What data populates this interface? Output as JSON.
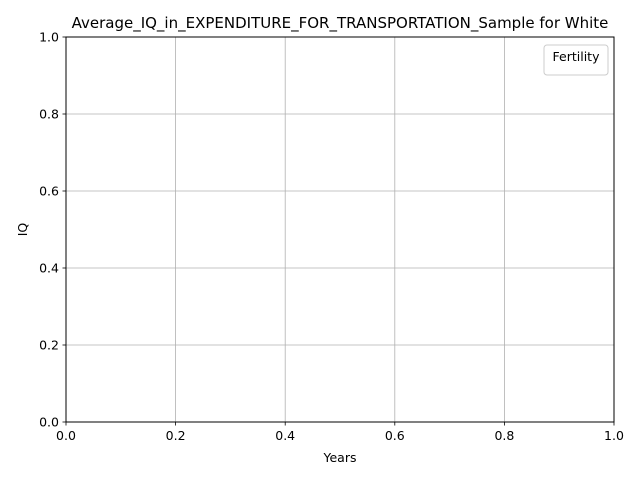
{
  "chart_data": {
    "type": "line",
    "title": "Average_IQ_in_EXPENDITURE_FOR_TRANSPORTATION_Sample for White",
    "xlabel": "Years",
    "ylabel": "IQ",
    "xlim": [
      0.0,
      1.0
    ],
    "ylim": [
      0.0,
      1.0
    ],
    "xticks": [
      "0.0",
      "0.2",
      "0.4",
      "0.6",
      "0.8",
      "1.0"
    ],
    "yticks": [
      "0.0",
      "0.2",
      "0.4",
      "0.6",
      "0.8",
      "1.0"
    ],
    "grid": true,
    "legend": {
      "title": "Fertility",
      "placement": "top-right",
      "entries": []
    },
    "series": []
  }
}
